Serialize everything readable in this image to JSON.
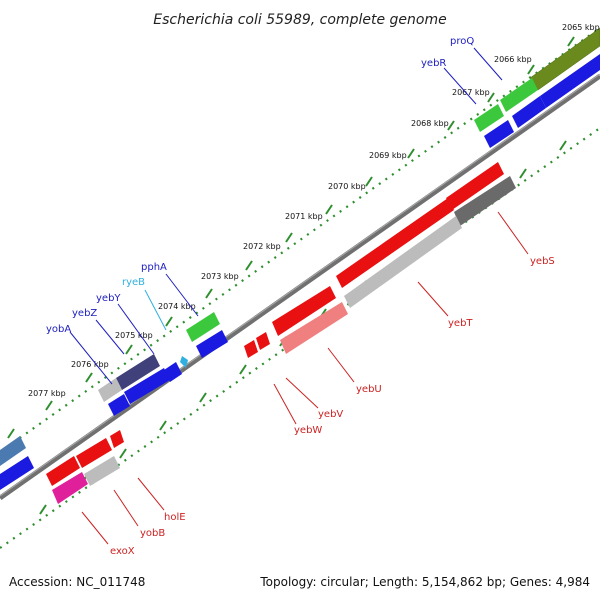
{
  "title": "Escherichia coli 55989, complete genome",
  "footer": {
    "accession": "Accession: NC_011748",
    "summary": "Topology: circular; Length: 5,154,862 bp; Genes: 4,984"
  },
  "scale_labels": [
    "2065 kbp",
    "2066 kbp",
    "2067 kbp",
    "2068 kbp",
    "2069 kbp",
    "2070 kbp",
    "2071 kbp",
    "2072 kbp",
    "2073 kbp",
    "2074 kbp",
    "2075 kbp",
    "2076 kbp",
    "2077 kbp"
  ],
  "gene_labels": {
    "proQ": "proQ",
    "yebR": "yebR",
    "pphA": "pphA",
    "ryeB": "ryeB",
    "yebY": "yebY",
    "yebZ": "yebZ",
    "yobA": "yobA",
    "yebS": "yebS",
    "yebT": "yebT",
    "yebU": "yebU",
    "yebV": "yebV",
    "yebW": "yebW",
    "holE": "holE",
    "yobB": "yobB",
    "exoX": "exoX"
  },
  "colors": {
    "backbone": "#6e6e6e",
    "ticks": "#2f8f2f",
    "label_blue": "#2020c0",
    "label_cyan": "#30b0e0",
    "label_red": "#cc2222",
    "gene_red": "#e81010",
    "gene_blue": "#1a1ae0",
    "gene_green": "#3cc83c",
    "gene_olive": "#6a8a1e",
    "gene_gray": "#bcbcbc",
    "gene_darkgray": "#6a6a6a",
    "gene_pink": "#f08080",
    "gene_magenta": "#e0209a",
    "gene_purple": "#40407a",
    "gene_steel": "#4a7ab0"
  }
}
